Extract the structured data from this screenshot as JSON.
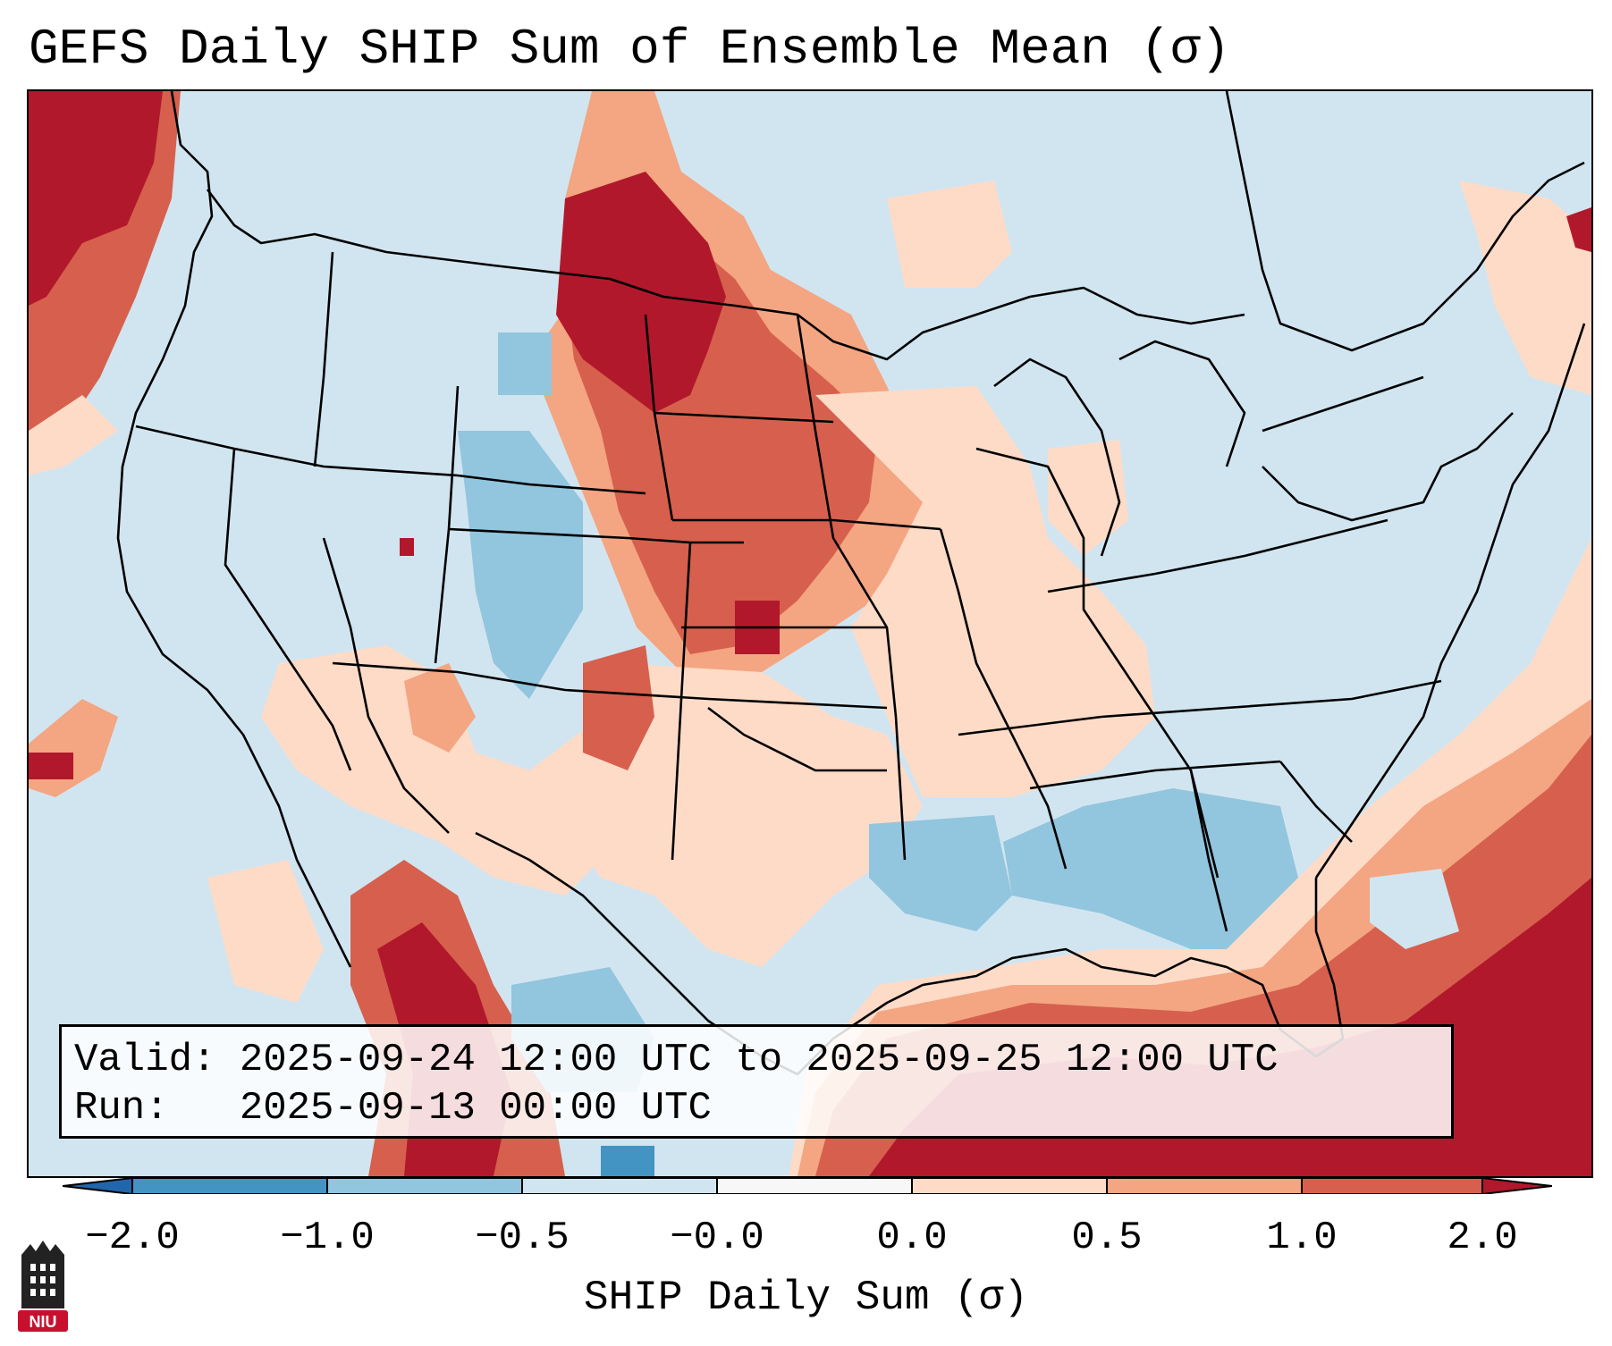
{
  "title": "GEFS Daily SHIP Sum of Ensemble Mean (σ)",
  "valid_line": "Valid: 2025-09-24 12:00 UTC to 2025-09-25 12:00 UTC",
  "run_line": "Run:   2025-09-13 00:00 UTC",
  "colorbar": {
    "title": "SHIP Daily Sum (σ)",
    "tick_labels": [
      "−2.0",
      "−1.0",
      "−0.5",
      "−0.0",
      "0.0",
      "0.5",
      "1.0",
      "2.0"
    ],
    "bins": [
      {
        "range": "< -2.0",
        "color": "#2166ac"
      },
      {
        "range": "-2.0 to -1.0",
        "color": "#4393c3"
      },
      {
        "range": "-1.0 to -0.5",
        "color": "#92c5de"
      },
      {
        "range": "-0.5 to -0.0",
        "color": "#d1e5f0"
      },
      {
        "range": "-0.0 to 0.0",
        "color": "#f7f7f7"
      },
      {
        "range": "0.0 to 0.5",
        "color": "#fddbc7"
      },
      {
        "range": "0.5 to 1.0",
        "color": "#f4a582"
      },
      {
        "range": "1.0 to 2.0",
        "color": "#d6604d"
      },
      {
        "range": "> 2.0",
        "color": "#b2182b"
      }
    ]
  },
  "logo_text": "NIU",
  "colors": {
    "very_low": "#2166ac",
    "low": "#4393c3",
    "below": "#92c5de",
    "near_neg": "#d1e5f0",
    "neutral": "#f7f7f7",
    "near_pos": "#fddbc7",
    "above": "#f4a582",
    "high": "#d6604d",
    "very_high": "#b2182b"
  }
}
